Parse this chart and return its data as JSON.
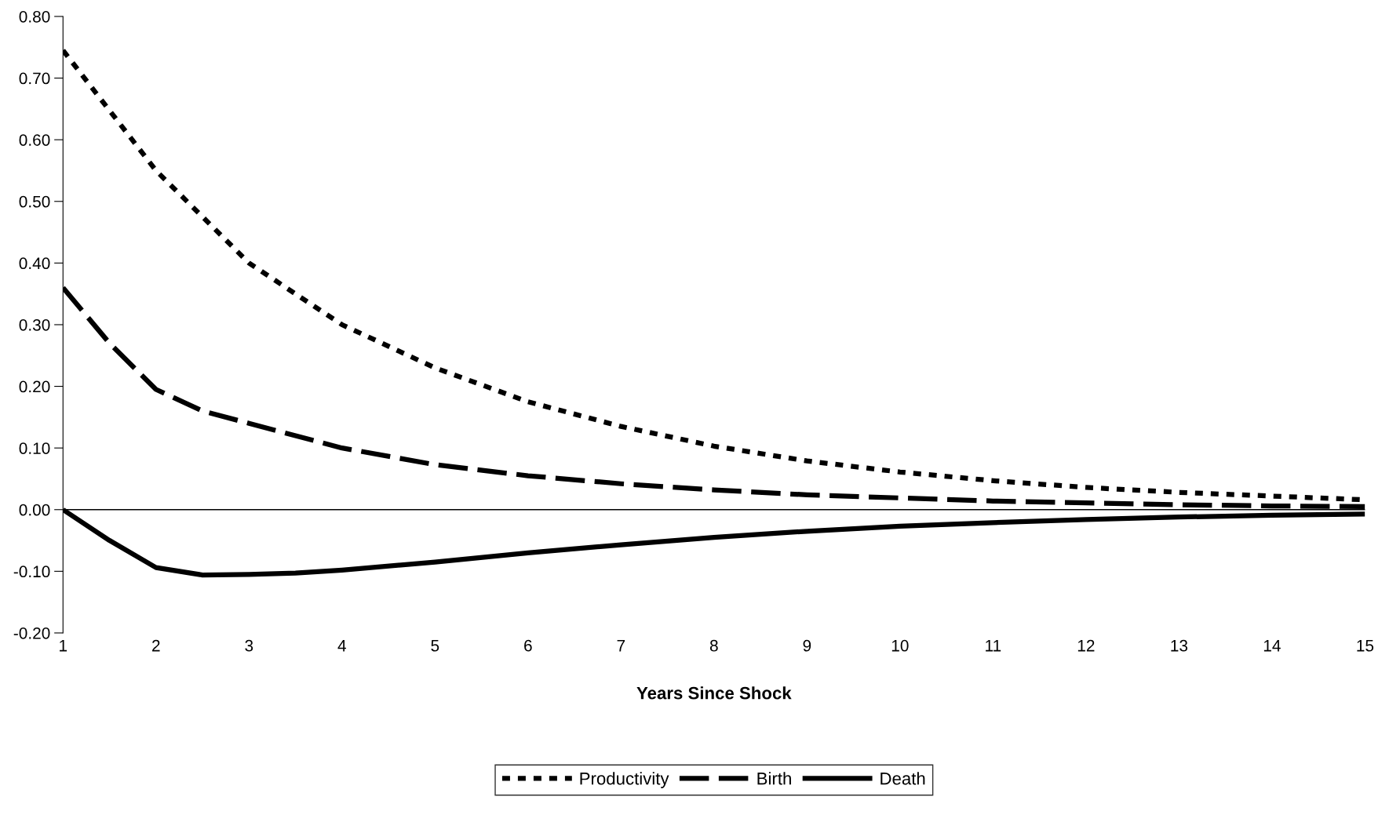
{
  "chart_data": {
    "type": "line",
    "xlabel": "Years Since Shock",
    "xlim": [
      1,
      15
    ],
    "xticks": [
      1,
      2,
      3,
      4,
      5,
      6,
      7,
      8,
      9,
      10,
      11,
      12,
      13,
      14,
      15
    ],
    "ylim": [
      -0.2,
      0.8
    ],
    "yticks": [
      {
        "value": -0.2,
        "label": "-0.20"
      },
      {
        "value": -0.1,
        "label": "-0.10"
      },
      {
        "value": 0,
        "label": "0.00"
      },
      {
        "value": 0.1,
        "label": "0.10"
      },
      {
        "value": 0.2,
        "label": "0.20"
      },
      {
        "value": 0.3,
        "label": "0.30"
      },
      {
        "value": 0.4,
        "label": "0.40"
      },
      {
        "value": 0.5,
        "label": "0.50"
      },
      {
        "value": 0.6,
        "label": "0.60"
      },
      {
        "value": 0.7,
        "label": "0.70"
      },
      {
        "value": 0.8,
        "label": "0.80"
      }
    ],
    "grid": false,
    "ref_lines": [
      {
        "axis": "y",
        "value": 0,
        "color": "#000000",
        "line_style": "solid"
      }
    ],
    "legend": "bottom",
    "marker": "none",
    "series": [
      {
        "name": "Productivity",
        "color": "#000000",
        "line_style": "dotted",
        "x": [
          1,
          2,
          3,
          4,
          5,
          6,
          7,
          8,
          9,
          10,
          11,
          12,
          13,
          14,
          15
        ],
        "values": [
          0.745,
          0.55,
          0.4,
          0.3,
          0.23,
          0.175,
          0.135,
          0.103,
          0.079,
          0.061,
          0.047,
          0.036,
          0.028,
          0.022,
          0.016
        ]
      },
      {
        "name": "Birth",
        "color": "#000000",
        "line_style": "dashed",
        "x": [
          1,
          1.5,
          2,
          2.5,
          3,
          4,
          5,
          6,
          7,
          8,
          9,
          10,
          11,
          12,
          13,
          14,
          15
        ],
        "values": [
          0.36,
          0.27,
          0.195,
          0.16,
          0.14,
          0.1,
          0.073,
          0.055,
          0.042,
          0.032,
          0.024,
          0.019,
          0.014,
          0.011,
          0.008,
          0.006,
          0.005
        ]
      },
      {
        "name": "Death",
        "color": "#000000",
        "line_style": "solid",
        "x": [
          1,
          1.5,
          2,
          2.5,
          3,
          3.5,
          4,
          5,
          6,
          7,
          8,
          9,
          10,
          11,
          12,
          13,
          14,
          15
        ],
        "values": [
          0,
          -0.05,
          -0.094,
          -0.106,
          -0.105,
          -0.103,
          -0.098,
          -0.085,
          -0.07,
          -0.057,
          -0.045,
          -0.035,
          -0.027,
          -0.021,
          -0.016,
          -0.012,
          -0.009,
          -0.007
        ]
      }
    ]
  }
}
